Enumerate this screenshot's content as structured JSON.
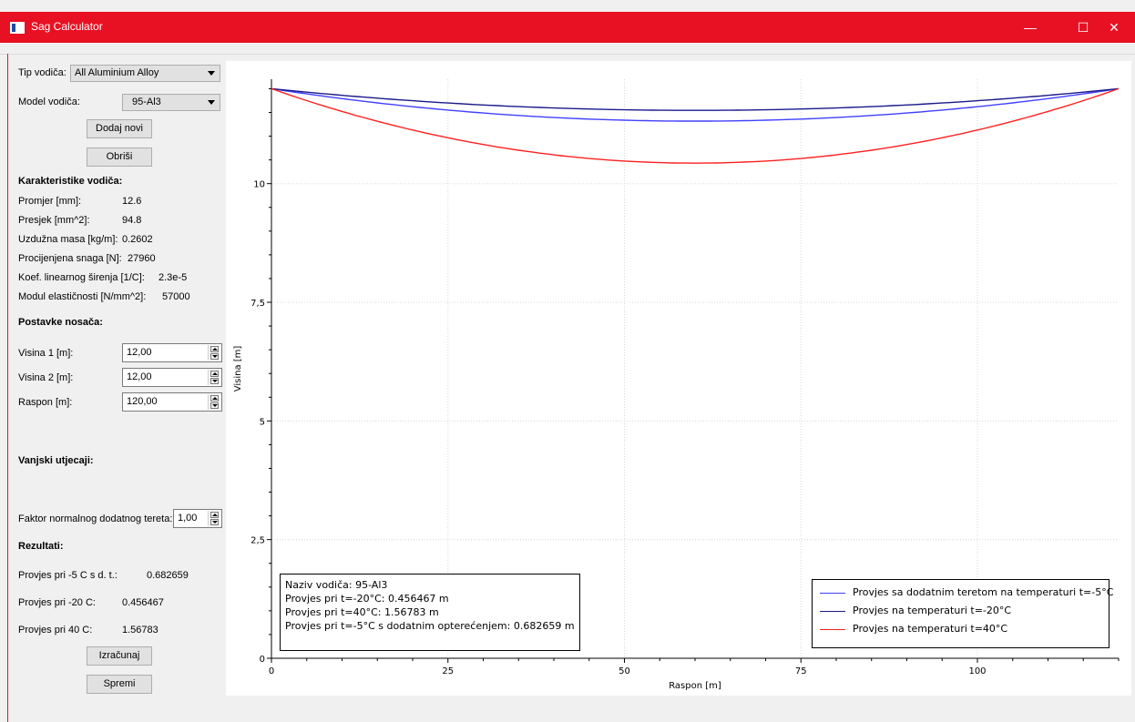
{
  "window": {
    "title": "Sag Calculator",
    "minimize_glyph": "—",
    "maximize_glyph": "☐",
    "close_glyph": "✕",
    "accent_color": "#e81123"
  },
  "left_panel": {
    "tip_vodica_label": "Tip vodiča:",
    "tip_vodica_value": "All Aluminium Alloy",
    "model_vodica_label": "Model vodiča:",
    "model_vodica_value": "95-Al3",
    "dodaj_novi_button": "Dodaj novi",
    "obrisi_button": "Obriši",
    "karakteristike_heading": "Karakteristike vodiča:",
    "characteristics": [
      {
        "label": "Promjer [mm]:",
        "value": "12.6"
      },
      {
        "label": "Presjek [mm^2]:",
        "value": "94.8"
      },
      {
        "label": "Uzdužna masa [kg/m]:",
        "value": "0.2602"
      },
      {
        "label": "Procijenjena snaga [N]:",
        "value": "27960"
      },
      {
        "label": "Koef. linearnog širenja [1/C]:",
        "value": "2.3e-5"
      },
      {
        "label": "Modul elastičnosti [N/mm^2]:",
        "value": "57000"
      }
    ],
    "postavke_heading": "Postavke nosača:",
    "visina1_label": "Visina 1 [m]:",
    "visina1_value": "12,00",
    "visina2_label": "Visina 2 [m]:",
    "visina2_value": "12,00",
    "raspon_label": "Raspon [m]:",
    "raspon_value": "120,00",
    "vanjski_heading": "Vanjski utjecaji:",
    "faktor_label": "Faktor normalnog dodatnog tereta:",
    "faktor_value": "1,00",
    "rezultati_heading": "Rezultati:",
    "results": [
      {
        "label": "Provjes pri -5 C s d. t.:",
        "value": "0.682659"
      },
      {
        "label": "Provjes pri -20 C:",
        "value": "0.456467"
      },
      {
        "label": "Provjes pri 40 C:",
        "value": "1.56783"
      }
    ],
    "izracunaj_button": "Izračunaj",
    "spremi_button": "Spremi"
  },
  "info_box": {
    "line1": "Naziv vodiča: 95-Al3",
    "line2": "Provjes pri t=-20°C: 0.456467 m",
    "line3": "Provjes pri t=40°C: 1.56783 m",
    "line4": "Provjes pri t=-5°C s dodatnim opterećenjem: 0.682659 m"
  },
  "chart_data": {
    "type": "line",
    "xlabel": "Raspon [m]",
    "ylabel": "Visina [m]",
    "xlim": [
      0,
      120
    ],
    "ylim": [
      0,
      12.2
    ],
    "x_ticks": [
      0,
      25,
      50,
      75,
      100
    ],
    "x_tick_labels": [
      "0",
      "25",
      "50",
      "75",
      "100"
    ],
    "y_ticks": [
      0,
      2.5,
      5,
      7.5,
      10
    ],
    "y_tick_labels": [
      "0",
      "2,5",
      "5",
      "7,5",
      "10"
    ],
    "grid": true,
    "legend_position": "bottom-right",
    "span": 120,
    "support_height": 12,
    "series": [
      {
        "name": "Provjes sa dodatnim teretom na temperaturi t=-5°C",
        "sag": 0.682659,
        "color": "#4040ff"
      },
      {
        "name": "Provjes na temperaturi t=-20°C",
        "sag": 0.456467,
        "color": "#1a1a8c"
      },
      {
        "name": "Provjes na temperaturi t=40°C",
        "sag": 1.56783,
        "color": "#ff2020"
      }
    ]
  }
}
